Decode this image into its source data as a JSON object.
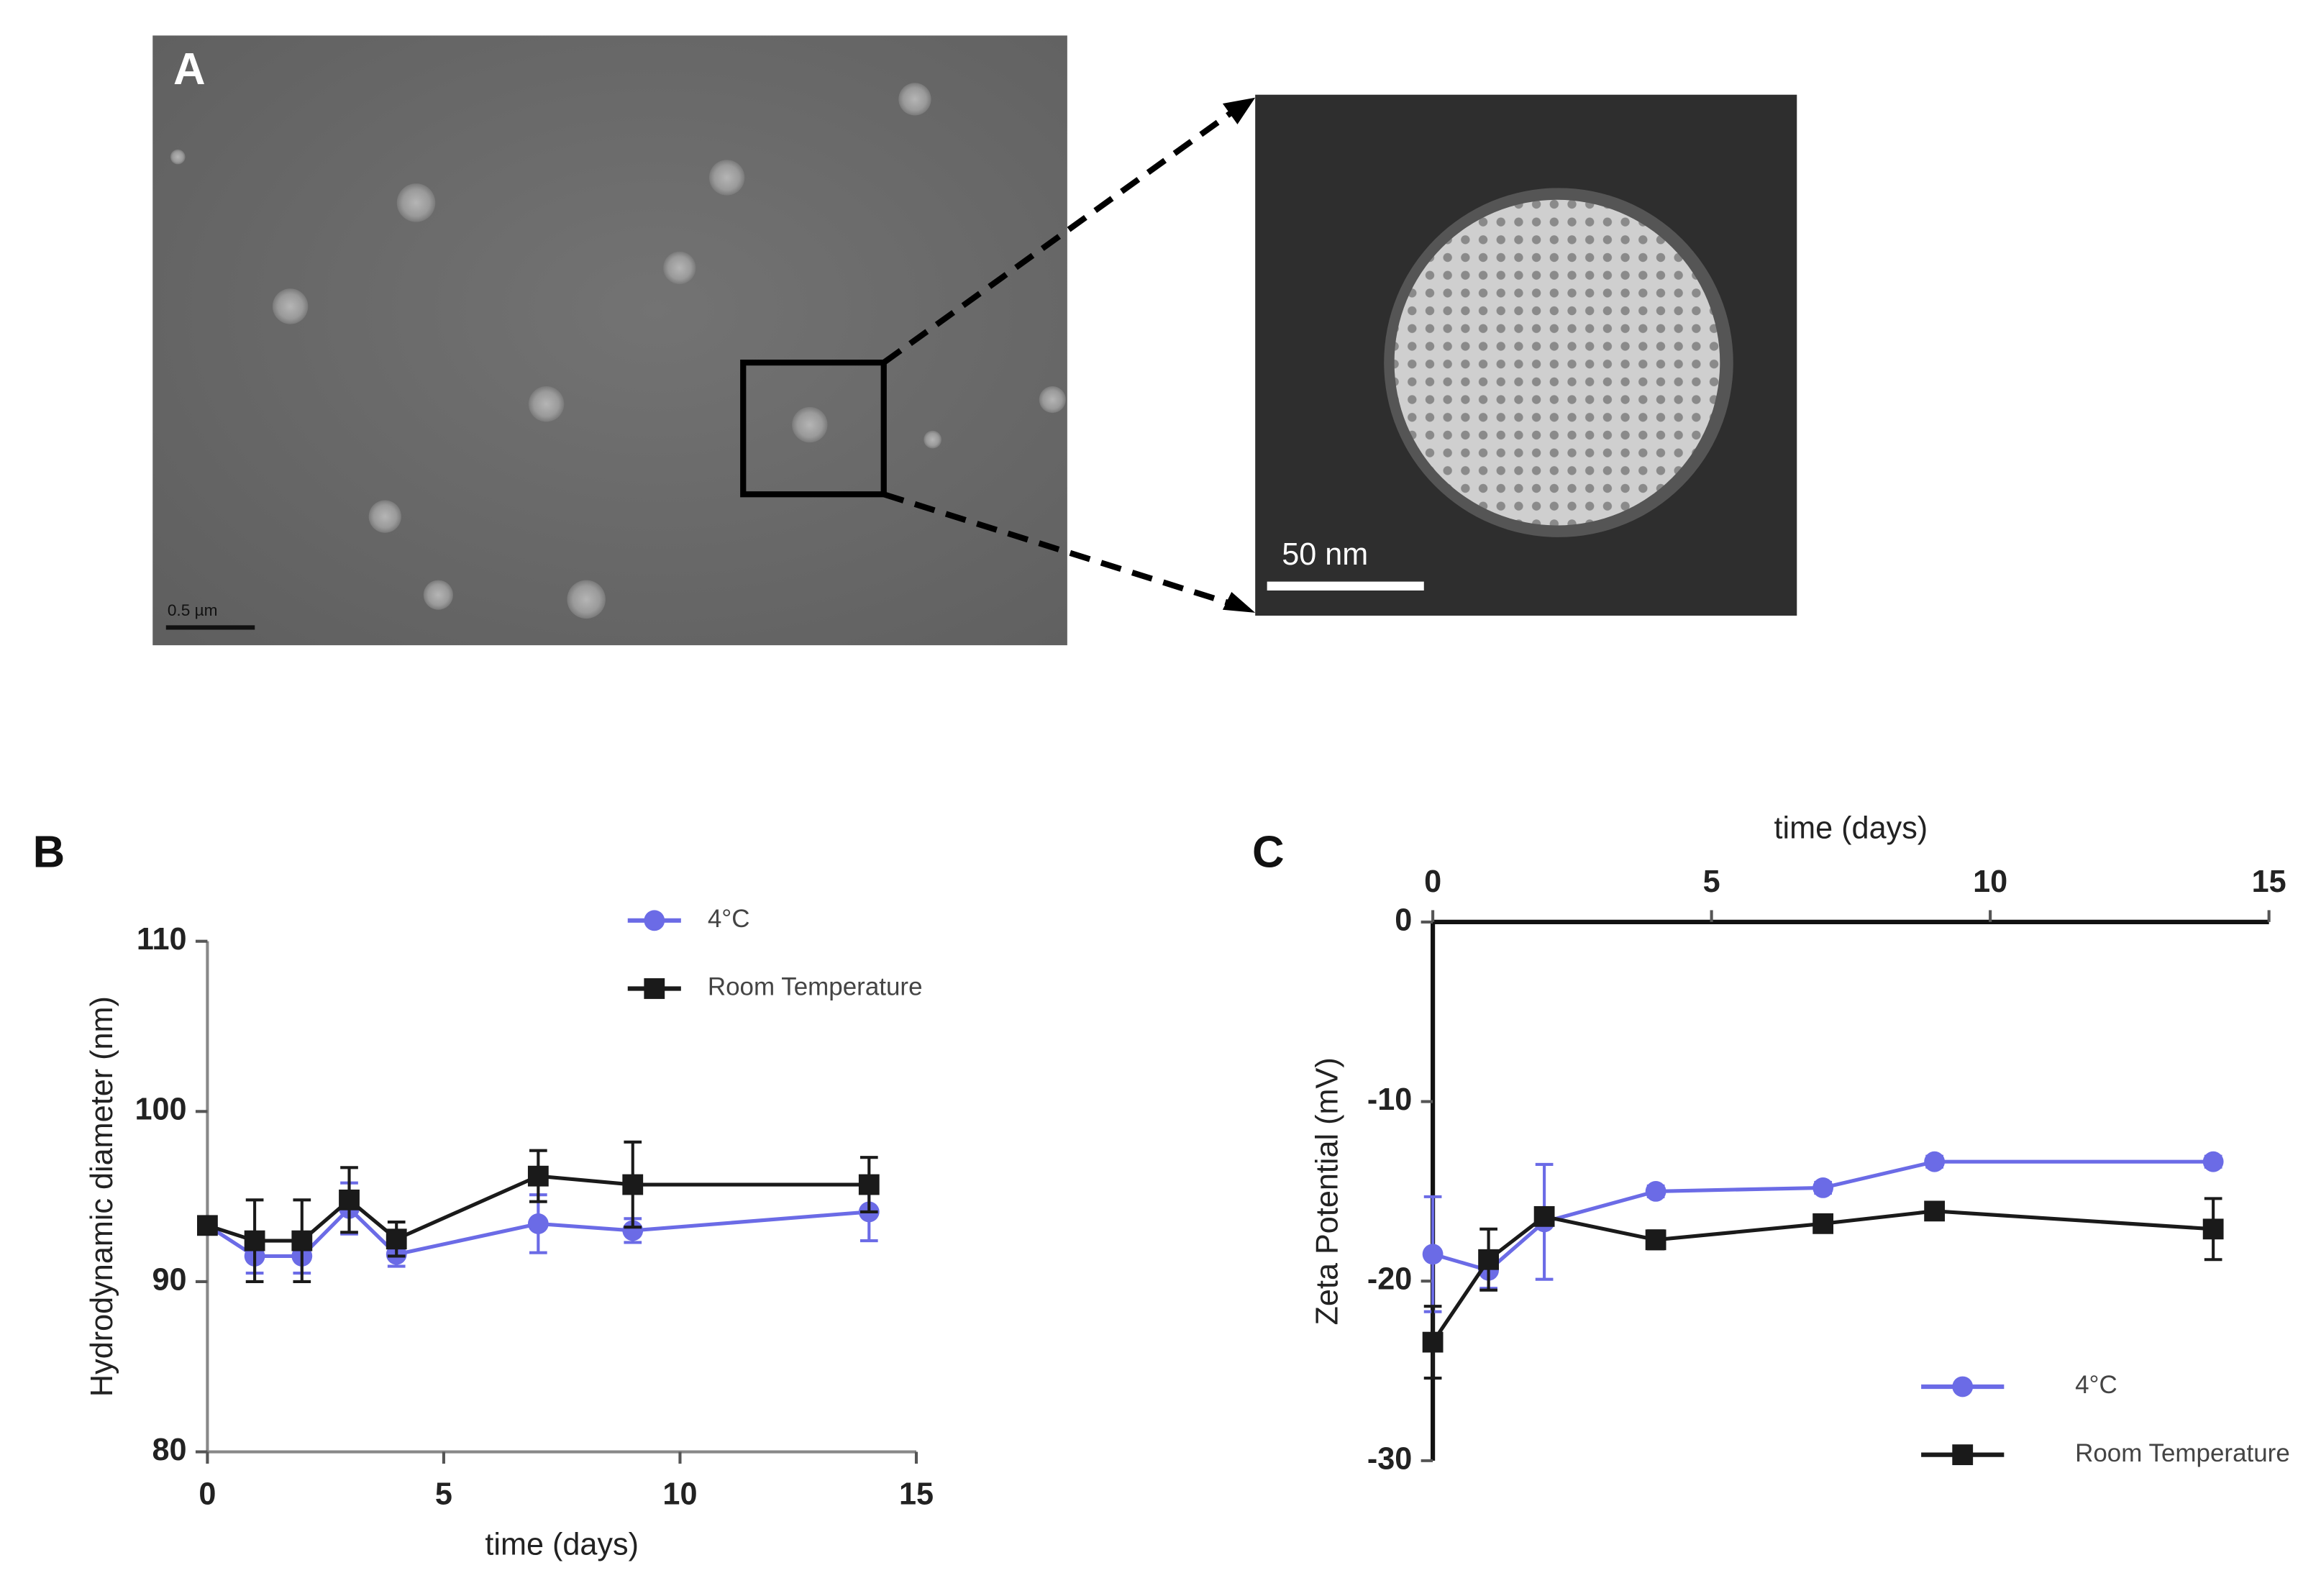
{
  "figure": {
    "panels": [
      "A",
      "B",
      "C"
    ],
    "scale_bars": [
      "0.5 µm",
      "50 nm"
    ]
  },
  "chart_data": [
    {
      "type": "line",
      "x_label": "time (days)",
      "y_label": "Hydrodynamic diameter (nm)",
      "x": [
        0,
        1,
        2,
        3,
        4,
        7,
        9,
        14
      ],
      "series": [
        {
          "name": "4°C",
          "color": "#6b6be6",
          "marker": "circle",
          "values": [
            93.3,
            91.5,
            91.5,
            94.3,
            91.6,
            93.4,
            93.0,
            94.1
          ],
          "errors": [
            0.3,
            1.0,
            1.0,
            1.5,
            0.7,
            1.7,
            0.7,
            1.7
          ]
        },
        {
          "name": "Room Temperature",
          "color": "#1a1a1a",
          "marker": "square",
          "values": [
            93.3,
            92.4,
            92.4,
            94.8,
            92.5,
            96.2,
            95.7,
            95.7
          ],
          "errors": [
            0.3,
            2.4,
            2.4,
            1.9,
            1.0,
            1.5,
            2.5,
            1.6
          ]
        }
      ],
      "xlim": [
        0,
        15
      ],
      "xticks": [
        0,
        5,
        10,
        15
      ],
      "ylim": [
        80,
        110
      ],
      "yticks": [
        80,
        90,
        100,
        110
      ],
      "x_axis_position": "bottom",
      "legend": "upper right"
    },
    {
      "type": "line",
      "x_label": "time (days)",
      "y_label": "Zeta Potential (mV)",
      "x": [
        0,
        1,
        2,
        4,
        7,
        9,
        14
      ],
      "series": [
        {
          "name": "4°C",
          "color": "#6b6be6",
          "marker": "circle",
          "values": [
            -18.5,
            -19.4,
            -16.7,
            -15.0,
            -14.8,
            -13.35,
            -13.35
          ],
          "errors": [
            3.2,
            1.0,
            3.2,
            0.3,
            0.3,
            0.3,
            0.3
          ]
        },
        {
          "name": "Room Temperature",
          "color": "#1a1a1a",
          "marker": "square",
          "values": [
            -23.4,
            -18.8,
            -16.4,
            -17.7,
            -16.8,
            -16.1,
            -17.1
          ],
          "errors": [
            2.0,
            1.7,
            0.3,
            0.5,
            0.3,
            0.3,
            1.7
          ]
        }
      ],
      "xlim": [
        0,
        15
      ],
      "xticks": [
        0,
        5,
        10,
        15
      ],
      "ylim": [
        -30,
        0
      ],
      "yticks": [
        -30,
        -20,
        -10,
        0
      ],
      "x_axis_position": "top",
      "legend": "lower right"
    }
  ]
}
